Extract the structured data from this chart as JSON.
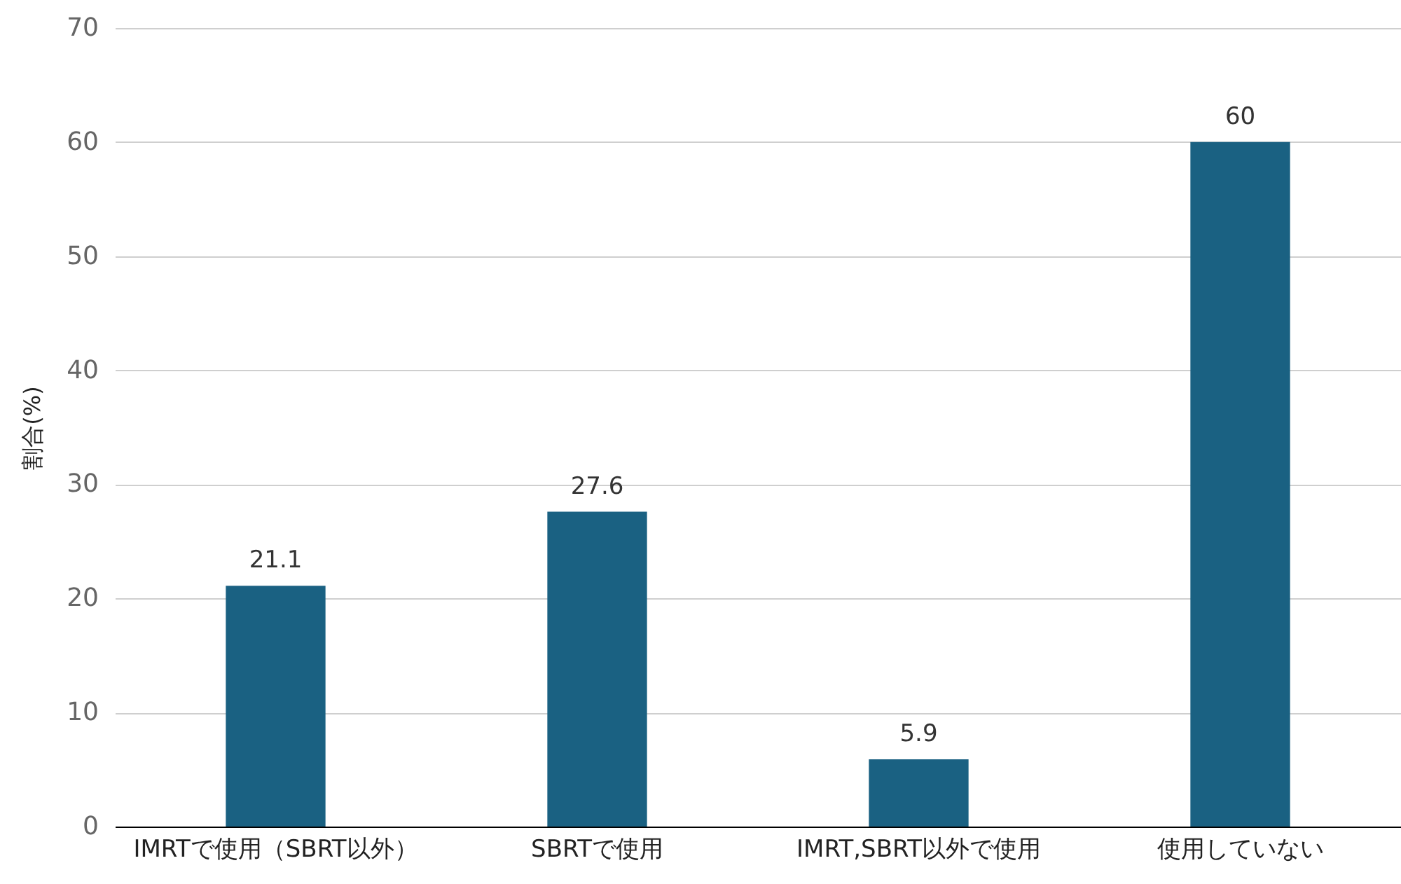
{
  "chart_data": {
    "type": "bar",
    "ylabel": "割合(%)",
    "categories": [
      "IMRTで使用（SBRT以外）",
      "SBRTで使用",
      "IMRT,SBRT以外で使用",
      "使用していない"
    ],
    "values": [
      21.1,
      27.6,
      5.9,
      60
    ],
    "color": "#1a6182",
    "ylim": [
      0,
      70
    ],
    "yticks": [
      0,
      10,
      20,
      30,
      40,
      50,
      60,
      70
    ],
    "grid": "y",
    "data_labels": true
  }
}
